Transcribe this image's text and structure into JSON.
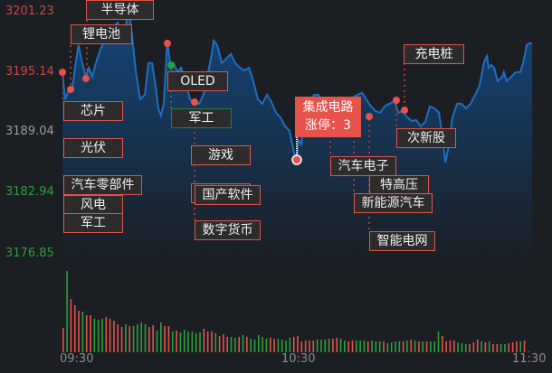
{
  "colors": {
    "up": "#e5534b",
    "down": "#2ba03a",
    "neutral": "#9a9da2",
    "line": "#1d6fc0",
    "background": "#1b1e23"
  },
  "y_axis": {
    "ticks": [
      "3201.23",
      "3195.14",
      "3189.04",
      "3182.94",
      "3176.85"
    ],
    "range": [
      3176.85,
      3201.23
    ],
    "prev_close": 3189.04
  },
  "x_axis": {
    "ticks": [
      "09:30",
      "10:30",
      "11:30"
    ]
  },
  "chart_data": {
    "type": "line",
    "price_series": [
      [
        0,
        3195.14
      ],
      [
        0.7,
        3192.41
      ],
      [
        1.6,
        3193.32
      ],
      [
        2.5,
        3193.32
      ],
      [
        3.2,
        3195.59
      ],
      [
        4.1,
        3197.87
      ],
      [
        4.8,
        3196.5
      ],
      [
        6,
        3194.68
      ],
      [
        6.7,
        3195.59
      ],
      [
        7.6,
        3194.68
      ],
      [
        8.5,
        3196.05
      ],
      [
        9.4,
        3197.14
      ],
      [
        10.6,
        3198.32
      ],
      [
        11.8,
        3199.68
      ],
      [
        12.9,
        3199.68
      ],
      [
        14.1,
        3200.14
      ],
      [
        15,
        3198.78
      ],
      [
        15.7,
        3198.32
      ],
      [
        16.4,
        3200.59
      ],
      [
        17.1,
        3201.05
      ],
      [
        17.5,
        3199.68
      ],
      [
        18.7,
        3195.14
      ],
      [
        19.8,
        3192.41
      ],
      [
        21,
        3192.87
      ],
      [
        21.9,
        3196.05
      ],
      [
        22.8,
        3196.05
      ],
      [
        23.7,
        3193.78
      ],
      [
        24.4,
        3191.5
      ],
      [
        25.1,
        3190.78
      ],
      [
        25.8,
        3191.96
      ],
      [
        26.7,
        3198.32
      ],
      [
        27.4,
        3196.05
      ],
      [
        28.3,
        3196.05
      ],
      [
        29.3,
        3195.14
      ],
      [
        30.2,
        3195.59
      ],
      [
        31.3,
        3194.23
      ],
      [
        32.5,
        3192.41
      ],
      [
        33.6,
        3191.96
      ],
      [
        34.8,
        3191.96
      ],
      [
        35.9,
        3192.87
      ],
      [
        37.1,
        3195.14
      ],
      [
        37.8,
        3196.5
      ],
      [
        38.5,
        3198.32
      ],
      [
        39.4,
        3197.87
      ],
      [
        40.6,
        3196.05
      ],
      [
        41.7,
        3196.5
      ],
      [
        42.9,
        3196.96
      ],
      [
        44,
        3196.05
      ],
      [
        45.2,
        3195.59
      ],
      [
        46.3,
        3195.32
      ],
      [
        47.5,
        3195.59
      ],
      [
        48.6,
        3194.23
      ],
      [
        49.8,
        3192.41
      ],
      [
        50.9,
        3191.96
      ],
      [
        52.1,
        3192.87
      ],
      [
        53.2,
        3192.14
      ],
      [
        54.4,
        3191.05
      ],
      [
        55.5,
        3190.59
      ],
      [
        56.7,
        3189.68
      ],
      [
        57.8,
        3189.23
      ],
      [
        59,
        3186.96
      ],
      [
        59.7,
        3186.33
      ],
      [
        60.1,
        3188.33
      ],
      [
        60.8,
        3187.87
      ],
      [
        61.8,
        3190.59
      ],
      [
        62.9,
        3191.96
      ],
      [
        64.1,
        3192.87
      ],
      [
        65.2,
        3192.87
      ],
      [
        66.4,
        3191.5
      ],
      [
        67.5,
        3191.68
      ],
      [
        68.7,
        3191.05
      ],
      [
        69.8,
        3191.5
      ],
      [
        70.7,
        3191.96
      ],
      [
        71.7,
        3191.5
      ],
      [
        72.8,
        3192.59
      ],
      [
        74,
        3192.59
      ],
      [
        75.1,
        3192.87
      ],
      [
        76.3,
        3193.05
      ],
      [
        77.4,
        3192.41
      ],
      [
        78.6,
        3191.68
      ],
      [
        79.7,
        3191.23
      ],
      [
        80.9,
        3191.05
      ],
      [
        82,
        3191.68
      ],
      [
        83.2,
        3191.96
      ],
      [
        84.6,
        3192.23
      ],
      [
        85.5,
        3191.05
      ],
      [
        86.6,
        3191.23
      ],
      [
        87.8,
        3190.59
      ],
      [
        88.9,
        3190.23
      ],
      [
        90.1,
        3190.3
      ],
      [
        91.2,
        3189.68
      ],
      [
        92.4,
        3190.14
      ],
      [
        93.5,
        3191.68
      ],
      [
        94.7,
        3191.5
      ],
      [
        95.9,
        3191.05
      ],
      [
        97,
        3187.87
      ],
      [
        97.5,
        3186.05
      ],
      [
        98.2,
        3187.41
      ],
      [
        99.3,
        3190.59
      ],
      [
        100.5,
        3191.96
      ],
      [
        101.6,
        3191.96
      ],
      [
        102.8,
        3191.5
      ],
      [
        103.9,
        3191.96
      ],
      [
        105.1,
        3192.87
      ],
      [
        106.2,
        3193.78
      ],
      [
        107.4,
        3196.23
      ],
      [
        108.1,
        3196.78
      ],
      [
        108.5,
        3195.59
      ],
      [
        109.2,
        3195.87
      ],
      [
        109.9,
        3195.59
      ],
      [
        110.8,
        3194.23
      ],
      [
        112,
        3194.68
      ],
      [
        112.4,
        3195.14
      ],
      [
        113.1,
        3194.23
      ],
      [
        114.3,
        3194.68
      ],
      [
        115.4,
        3195.14
      ],
      [
        116.6,
        3195.14
      ],
      [
        117.3,
        3196.05
      ],
      [
        118.2,
        3197.87
      ],
      [
        118.9,
        3198.05
      ],
      [
        119.6,
        3198.05
      ]
    ],
    "volume": [
      [
        27,
        "up"
      ],
      [
        90,
        "down"
      ],
      [
        59,
        "up"
      ],
      [
        52,
        "up"
      ],
      [
        46,
        "up"
      ],
      [
        45,
        "down"
      ],
      [
        41,
        "up"
      ],
      [
        41,
        "up"
      ],
      [
        37,
        "down"
      ],
      [
        36,
        "down"
      ],
      [
        37,
        "down"
      ],
      [
        39,
        "up"
      ],
      [
        37,
        "up"
      ],
      [
        35,
        "up"
      ],
      [
        31,
        "up"
      ],
      [
        28,
        "up"
      ],
      [
        31,
        "down"
      ],
      [
        29,
        "up"
      ],
      [
        29,
        "down"
      ],
      [
        31,
        "down"
      ],
      [
        33,
        "down"
      ],
      [
        31,
        "down"
      ],
      [
        28,
        "up"
      ],
      [
        30,
        "up"
      ],
      [
        24,
        "down"
      ],
      [
        33,
        "down"
      ],
      [
        29,
        "up"
      ],
      [
        29,
        "up"
      ],
      [
        23,
        "down"
      ],
      [
        24,
        "up"
      ],
      [
        22,
        "down"
      ],
      [
        25,
        "down"
      ],
      [
        23,
        "down"
      ],
      [
        23,
        "down"
      ],
      [
        21,
        "down"
      ],
      [
        22,
        "down"
      ],
      [
        26,
        "up"
      ],
      [
        23,
        "up"
      ],
      [
        23,
        "up"
      ],
      [
        21,
        "down"
      ],
      [
        18,
        "up"
      ],
      [
        20,
        "up"
      ],
      [
        17,
        "up"
      ],
      [
        17,
        "down"
      ],
      [
        16,
        "down"
      ],
      [
        17,
        "up"
      ],
      [
        19,
        "down"
      ],
      [
        17,
        "up"
      ],
      [
        15,
        "down"
      ],
      [
        14,
        "down"
      ],
      [
        19,
        "down"
      ],
      [
        17,
        "down"
      ],
      [
        15,
        "down"
      ],
      [
        16,
        "up"
      ],
      [
        15,
        "up"
      ],
      [
        15,
        "down"
      ],
      [
        14,
        "down"
      ],
      [
        13,
        "down"
      ],
      [
        16,
        "down"
      ],
      [
        17,
        "up"
      ],
      [
        18,
        "up"
      ],
      [
        12,
        "up"
      ],
      [
        13,
        "up"
      ],
      [
        13,
        "up"
      ],
      [
        13,
        "up"
      ],
      [
        14,
        "down"
      ],
      [
        14,
        "down"
      ],
      [
        14,
        "down"
      ],
      [
        15,
        "down"
      ],
      [
        15,
        "up"
      ],
      [
        16,
        "up"
      ],
      [
        15,
        "down"
      ],
      [
        13,
        "down"
      ],
      [
        12,
        "up"
      ],
      [
        13,
        "up"
      ],
      [
        13,
        "down"
      ],
      [
        13,
        "down"
      ],
      [
        13,
        "down"
      ],
      [
        12,
        "up"
      ],
      [
        13,
        "down"
      ],
      [
        12,
        "down"
      ],
      [
        12,
        "down"
      ],
      [
        12,
        "up"
      ],
      [
        10,
        "down"
      ],
      [
        11,
        "down"
      ],
      [
        12,
        "down"
      ],
      [
        12,
        "down"
      ],
      [
        12,
        "up"
      ],
      [
        13,
        "down"
      ],
      [
        14,
        "up"
      ],
      [
        13,
        "down"
      ],
      [
        12,
        "up"
      ],
      [
        12,
        "down"
      ],
      [
        12,
        "up"
      ],
      [
        12,
        "down"
      ],
      [
        12,
        "down"
      ],
      [
        23,
        "down"
      ],
      [
        18,
        "up"
      ],
      [
        12,
        "up"
      ],
      [
        13,
        "up"
      ],
      [
        13,
        "up"
      ],
      [
        11,
        "down"
      ],
      [
        10,
        "down"
      ],
      [
        9,
        "down"
      ],
      [
        9,
        "up"
      ],
      [
        11,
        "up"
      ],
      [
        14,
        "up"
      ],
      [
        12,
        "down"
      ],
      [
        11,
        "up"
      ],
      [
        12,
        "down"
      ],
      [
        9,
        "up"
      ],
      [
        9,
        "up"
      ],
      [
        9,
        "down"
      ],
      [
        9,
        "down"
      ],
      [
        10,
        "up"
      ],
      [
        11,
        "up"
      ],
      [
        12,
        "up"
      ],
      [
        12,
        "down"
      ],
      [
        13,
        "up"
      ],
      [
        1,
        "up"
      ]
    ]
  },
  "labels": [
    "锂电池",
    "半导体",
    "芯片",
    "光伏",
    "汽车零部件",
    "风电",
    "军工",
    "OLED",
    "军工",
    "游戏",
    "国产软件",
    "国产软件",
    "数字货币",
    "充电桩",
    "次新股",
    "汽车电子",
    "特高压",
    "新能源汽车",
    "智能电网"
  ],
  "tooltip": {
    "sector": "集成电路",
    "limit_up": "涨停：3"
  }
}
